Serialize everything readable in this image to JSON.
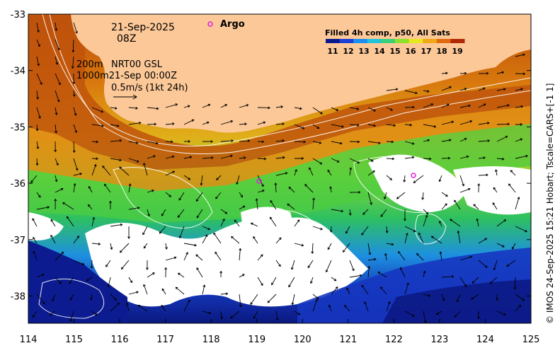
{
  "map": {
    "date": "21-Sep-2025",
    "time": "08Z",
    "argo_label": "Argo",
    "contour_line1": "200m",
    "contour_line1_rest": "NRT00 GSL",
    "contour_line2": "1000m21-Sep 00:00Z",
    "scale_vector_label": "0.5m/s (1kt 24h)",
    "colorbar_title": "Filled 4h comp, p50, All Sats",
    "colorbar_ticks": [
      "11",
      "12",
      "13",
      "14",
      "15",
      "16",
      "17",
      "18",
      "19"
    ],
    "colorbar_colors": [
      "#0a1a8a",
      "#1c3fd6",
      "#1e8ff0",
      "#22c2d8",
      "#3ad07a",
      "#8fe02a",
      "#e8e81e",
      "#f0a818",
      "#e06a10",
      "#b02a08"
    ],
    "credit": "© IMOS 24-Sep-2025 15:21 Hobart; Tscale=CARS+[-1 1]",
    "x_ticks": [
      "114",
      "115",
      "116",
      "117",
      "118",
      "119",
      "120",
      "121",
      "122",
      "123",
      "124",
      "125"
    ],
    "y_ticks": [
      "-33",
      "-34",
      "-35",
      "-36",
      "-37",
      "-38"
    ],
    "land_color": "#fcc898"
  }
}
